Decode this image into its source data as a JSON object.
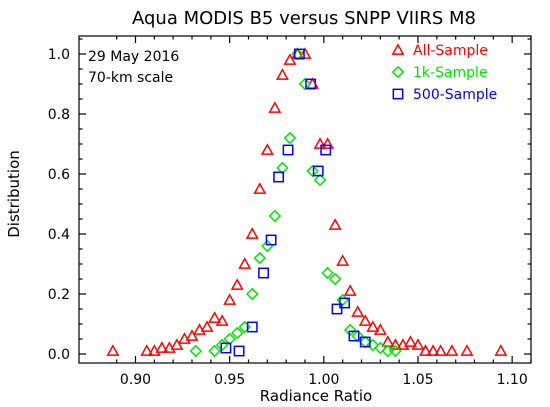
{
  "chart_data": {
    "type": "scatter",
    "title": "Aqua MODIS B5 versus SNPP VIIRS M8",
    "xlabel": "Radiance Ratio",
    "ylabel": "Distribution",
    "xlim": [
      0.87,
      1.11
    ],
    "ylim": [
      -0.03,
      1.06
    ],
    "xticks": [
      0.9,
      0.95,
      1.0,
      1.05,
      1.1
    ],
    "xtick_labels": [
      "0.90",
      "0.95",
      "1.00",
      "1.05",
      "1.10"
    ],
    "yticks": [
      0.0,
      0.2,
      0.4,
      0.6,
      0.8,
      1.0
    ],
    "ytick_labels": [
      "0.0",
      "0.2",
      "0.4",
      "0.6",
      "0.8",
      "1.0"
    ],
    "annotations": [
      "29 May 2016",
      "70-km scale"
    ],
    "legend_position": "top-right",
    "grid": false,
    "series": [
      {
        "name": "All-Sample",
        "marker": "triangle",
        "color": "#ff0000",
        "points": [
          [
            0.888,
            0.01
          ],
          [
            0.906,
            0.01
          ],
          [
            0.91,
            0.01
          ],
          [
            0.914,
            0.02
          ],
          [
            0.918,
            0.02
          ],
          [
            0.922,
            0.03
          ],
          [
            0.926,
            0.05
          ],
          [
            0.93,
            0.06
          ],
          [
            0.934,
            0.08
          ],
          [
            0.938,
            0.09
          ],
          [
            0.942,
            0.12
          ],
          [
            0.946,
            0.11
          ],
          [
            0.95,
            0.18
          ],
          [
            0.954,
            0.23
          ],
          [
            0.958,
            0.3
          ],
          [
            0.962,
            0.4
          ],
          [
            0.966,
            0.55
          ],
          [
            0.97,
            0.68
          ],
          [
            0.974,
            0.82
          ],
          [
            0.978,
            0.93
          ],
          [
            0.982,
            0.98
          ],
          [
            0.986,
            1.0
          ],
          [
            0.99,
            1.0
          ],
          [
            0.994,
            0.9
          ],
          [
            0.998,
            0.7
          ],
          [
            1.002,
            0.7
          ],
          [
            1.006,
            0.43
          ],
          [
            1.01,
            0.31
          ],
          [
            1.014,
            0.21
          ],
          [
            1.018,
            0.14
          ],
          [
            1.022,
            0.11
          ],
          [
            1.026,
            0.09
          ],
          [
            1.03,
            0.08
          ],
          [
            1.034,
            0.04
          ],
          [
            1.038,
            0.03
          ],
          [
            1.042,
            0.03
          ],
          [
            1.046,
            0.04
          ],
          [
            1.05,
            0.03
          ],
          [
            1.054,
            0.01
          ],
          [
            1.058,
            0.01
          ],
          [
            1.062,
            0.01
          ],
          [
            1.068,
            0.01
          ],
          [
            1.076,
            0.01
          ],
          [
            1.094,
            0.01
          ]
        ]
      },
      {
        "name": "1k-Sample",
        "marker": "diamond",
        "color": "#00e600",
        "points": [
          [
            0.932,
            0.01
          ],
          [
            0.942,
            0.01
          ],
          [
            0.946,
            0.03
          ],
          [
            0.95,
            0.05
          ],
          [
            0.954,
            0.07
          ],
          [
            0.958,
            0.09
          ],
          [
            0.962,
            0.2
          ],
          [
            0.966,
            0.32
          ],
          [
            0.97,
            0.36
          ],
          [
            0.974,
            0.46
          ],
          [
            0.978,
            0.62
          ],
          [
            0.982,
            0.72
          ],
          [
            0.986,
            1.0
          ],
          [
            0.99,
            0.9
          ],
          [
            0.994,
            0.61
          ],
          [
            0.998,
            0.58
          ],
          [
            1.002,
            0.27
          ],
          [
            1.006,
            0.25
          ],
          [
            1.01,
            0.18
          ],
          [
            1.014,
            0.08
          ],
          [
            1.018,
            0.06
          ],
          [
            1.022,
            0.04
          ],
          [
            1.026,
            0.03
          ],
          [
            1.03,
            0.02
          ],
          [
            1.034,
            0.01
          ],
          [
            1.038,
            0.01
          ]
        ]
      },
      {
        "name": "500-Sample",
        "marker": "square",
        "color": "#0000ff",
        "points": [
          [
            0.948,
            0.02
          ],
          [
            0.955,
            0.01
          ],
          [
            0.962,
            0.09
          ],
          [
            0.968,
            0.27
          ],
          [
            0.972,
            0.38
          ],
          [
            0.976,
            0.59
          ],
          [
            0.981,
            0.68
          ],
          [
            0.987,
            1.0
          ],
          [
            0.993,
            0.9
          ],
          [
            0.997,
            0.61
          ],
          [
            1.001,
            0.68
          ],
          [
            1.007,
            0.15
          ],
          [
            1.011,
            0.17
          ],
          [
            1.016,
            0.06
          ],
          [
            1.022,
            0.04
          ]
        ]
      }
    ]
  }
}
